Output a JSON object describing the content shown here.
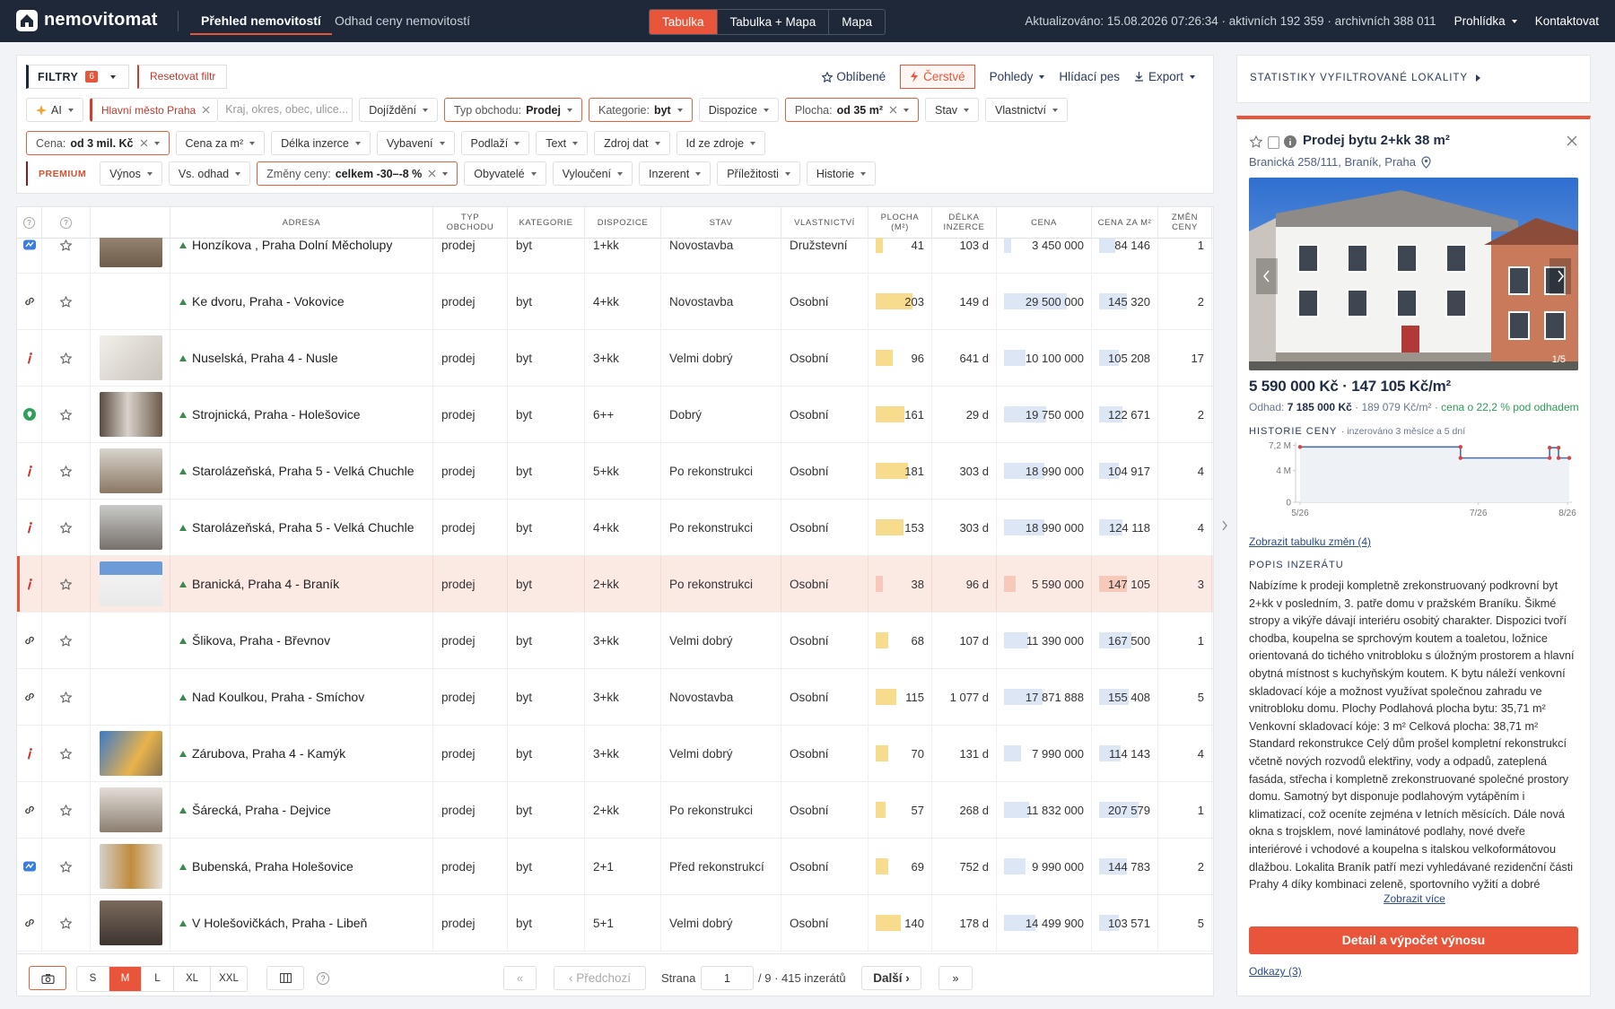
{
  "header": {
    "logo": "nemovitomat",
    "nav": [
      "Přehled nemovitostí",
      "Odhad ceny nemovitostí"
    ],
    "views": [
      "Tabulka",
      "Tabulka + Mapa",
      "Mapa"
    ],
    "status": "Aktualizováno: 15.08.2026 07:26:34 · aktivních 192 359 · archivních 388 011",
    "menu": [
      "Prohlídka",
      "Kontaktovat"
    ]
  },
  "filters": {
    "label": "FILTRY",
    "count": "6",
    "reset": "Resetovat filtr",
    "actions": [
      "Oblíbené",
      "Čerstvé",
      "Pohledy",
      "Hlídací pes",
      "Export"
    ],
    "ai": "AI",
    "location": "Hlavní město Praha",
    "placeholder": "Kraj, okres, obec, ulice...",
    "row1": [
      "Dojíždění",
      {
        "label": "Typ obchodu:",
        "value": "Prodej"
      },
      {
        "label": "Kategorie:",
        "value": "byt"
      },
      "Dispozice",
      {
        "label": "Plocha:",
        "value": "od 35 m²"
      },
      "Stav",
      "Vlastnictví"
    ],
    "row2": [
      {
        "label": "Cena:",
        "value": "od 3 mil. Kč"
      },
      "Cena za m²",
      "Délka inzerce",
      "Vybavení",
      "Podlaží",
      "Text",
      "Zdroj dat",
      "Id ze zdroje"
    ],
    "premium": "PREMIUM",
    "row3": [
      "Výnos",
      "Vs. odhad",
      {
        "label": "Změny ceny:",
        "value": "celkem -30–-8 %"
      },
      "Obyvatelé",
      "Vyloučení",
      "Inzerent",
      "Příležitosti",
      "Historie"
    ]
  },
  "table": {
    "headers": [
      "?",
      "?",
      "ADRESA",
      "TYP OBCHODU",
      "KATEGORIE",
      "DISPOZICE",
      "STAV",
      "VLASTNICTVÍ",
      "PLOCHA (M²)",
      "DÉLKA INZERCE",
      "CENA",
      "CENA ZA M²",
      "ZMĚN CENY"
    ],
    "rows": [
      [
        "Honzíkova , Praha Dolní Měcholupy",
        "prodej",
        "byt",
        "1+kk",
        "Novostavba",
        "Družstevní",
        "41",
        "103 d",
        "3 450 000",
        "84 146",
        "1"
      ],
      [
        "Ke dvoru, Praha - Vokovice",
        "prodej",
        "byt",
        "4+kk",
        "Novostavba",
        "Osobní",
        "203",
        "149 d",
        "29 500 000",
        "145 320",
        "2"
      ],
      [
        "Nuselská, Praha 4 - Nusle",
        "prodej",
        "byt",
        "3+kk",
        "Velmi dobrý",
        "Osobní",
        "96",
        "641 d",
        "10 100 000",
        "105 208",
        "17"
      ],
      [
        "Strojnická, Praha - Holešovice",
        "prodej",
        "byt",
        "6++",
        "Dobrý",
        "Osobní",
        "161",
        "29 d",
        "19 750 000",
        "122 671",
        "2"
      ],
      [
        "Starolázeňská, Praha 5 - Velká Chuchle",
        "prodej",
        "byt",
        "5+kk",
        "Po rekonstrukci",
        "Osobní",
        "181",
        "303 d",
        "18 990 000",
        "104 917",
        "4"
      ],
      [
        "Starolázeňská, Praha 5 - Velká Chuchle",
        "prodej",
        "byt",
        "4+kk",
        "Po rekonstrukci",
        "Osobní",
        "153",
        "303 d",
        "18 990 000",
        "124 118",
        "4"
      ],
      [
        "Branická, Praha 4 - Braník",
        "prodej",
        "byt",
        "2+kk",
        "Po rekonstrukci",
        "Osobní",
        "38",
        "96 d",
        "5 590 000",
        "147 105",
        "3"
      ],
      [
        "Šlikova, Praha - Břevnov",
        "prodej",
        "byt",
        "3+kk",
        "Velmi dobrý",
        "Osobní",
        "68",
        "107 d",
        "11 390 000",
        "167 500",
        "1"
      ],
      [
        "Nad Koulkou, Praha - Smíchov",
        "prodej",
        "byt",
        "3+kk",
        "Novostavba",
        "Osobní",
        "115",
        "1 077 d",
        "17 871 888",
        "155 408",
        "5"
      ],
      [
        "Zárubova, Praha 4 - Kamýk",
        "prodej",
        "byt",
        "3+kk",
        "Velmi dobrý",
        "Osobní",
        "70",
        "131 d",
        "7 990 000",
        "114 143",
        "4"
      ],
      [
        "Šárecká, Praha - Dejvice",
        "prodej",
        "byt",
        "2+kk",
        "Po rekonstrukci",
        "Osobní",
        "57",
        "268 d",
        "11 832 000",
        "207 579",
        "1"
      ],
      [
        "Bubenská, Praha Holešovice",
        "prodej",
        "byt",
        "2+1",
        "Před rekonstrukcí",
        "Osobní",
        "69",
        "752 d",
        "9 990 000",
        "144 783",
        "2"
      ],
      [
        "V Holešovičkách, Praha - Libeň",
        "prodej",
        "byt",
        "5+1",
        "Velmi dobrý",
        "Osobní",
        "140",
        "178 d",
        "14 499 900",
        "103 571",
        "5"
      ]
    ]
  },
  "footer": {
    "sizes": [
      "S",
      "M",
      "L",
      "XL",
      "XXL"
    ],
    "help": "?",
    "first": "«",
    "prev": "‹ Předchozí",
    "page_label": "Strana",
    "page": "1",
    "total": "/ 9 · 415 inzerátů",
    "next": "Další ›",
    "last": "»"
  },
  "detail": {
    "stats": "STATISTIKY VYFILTROVANÉ LOKALITY",
    "title": "Prodej bytu 2+kk 38 m²",
    "address": "Branická 258/111, Braník, Praha",
    "photo_counter": "1/5",
    "price": "5 590 000 Kč · 147 105 Kč/m²",
    "estimate_label": "Odhad:",
    "estimate": "7 185 000 Kč",
    "estimate_rest": "· 189 079 Kč/m²",
    "estimate_note": "· cena o 22,2 % pod odhadem",
    "history_title": "HISTORIE CENY",
    "history_note": "· inzerováno 3 měsíce a 5 dní",
    "history_chart": {
      "type": "line",
      "x": [
        5,
        6.8,
        6.8,
        7.8,
        7.8,
        7.9,
        7.9,
        8.02
      ],
      "values": [
        7000000,
        7000000,
        5600000,
        5600000,
        6900000,
        6900000,
        5600000,
        5600000
      ],
      "xlim": [
        4.95,
        8.05
      ],
      "ylim": [
        0,
        7600000
      ],
      "xticks": [
        {
          "value": 5,
          "label": "5/26"
        },
        {
          "value": 7,
          "label": "7/26"
        },
        {
          "value": 8,
          "label": "8/26"
        }
      ],
      "yticks": [
        {
          "value": 7200000,
          "label": "7,2 M"
        },
        {
          "value": 4000000,
          "label": "4 M"
        },
        0
      ],
      "color": "#4a6fa5"
    },
    "changes_link": "Zobrazit tabulku změn (4)",
    "description_title": "POPIS INZERÁTU",
    "description": "Nabízíme k prodeji kompletně zrekonstruovaný podkrovní byt 2+kk v posledním, 3. patře domu v pražském Braníku. Šikmé stropy a vikýře dávají interiéru osobitý charakter. Dispozici tvoří chodba, koupelna se sprchovým koutem a toaletou, ložnice orientovaná do tichého vnitrobloku s úložným prostorem a hlavní obytná místnost s kuchyňským koutem. K bytu náleží venkovní skladovací kóje a možnost využívat společnou zahradu ve vnitrobloku domu. Plochy Podlahová plocha bytu: 35,71 m² Venkovní skladovací kóje: 3 m² Celková plocha: 38,71 m² Standard rekonstrukce Celý dům prošel kompletní rekonstrukcí včetně nových rozvodů elektřiny, vody a odpadů, zateplená fasáda, střecha i kompletně zrekonstruované společné prostory domu. Samotný byt disponuje podlahovým vytápěním i klimatizací, což oceníte zejména v letních měsících. Dále nová okna s trojsklem, nové laminátové podlahy, nové dveře interiérové i vchodové a koupelna s italskou velkoformátovou dlažbou. Lokalita Braník patří mezi vyhledávané rezidenční části Prahy 4 díky kombinaci zeleně, sportovního vyžití a dobré",
    "more": "Zobrazit více",
    "button": "Detail a výpočet výnosu",
    "links": "Odkazy (3)"
  }
}
